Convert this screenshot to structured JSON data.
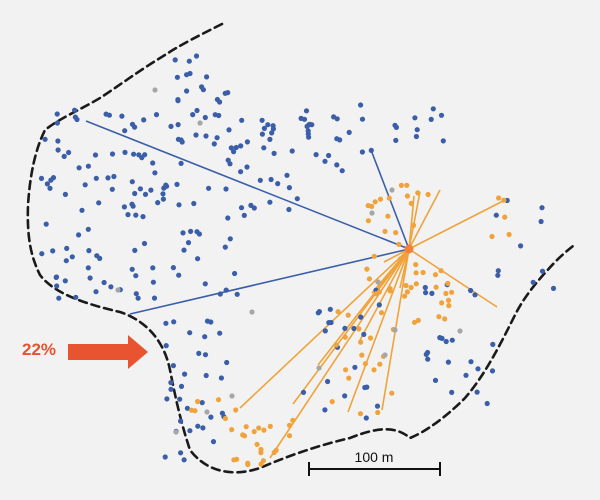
{
  "annotation": {
    "percent_label": "22%"
  },
  "scale_bar": {
    "label": "100 m"
  },
  "colors": {
    "background": "#f2f2f2",
    "group_a": "#3a5ea8",
    "group_b": "#f0a33a",
    "neutral": "#a6a6a6",
    "boundary": "#1a1a1a",
    "arrow": "#e85430",
    "hub": "#f4803c"
  }
}
